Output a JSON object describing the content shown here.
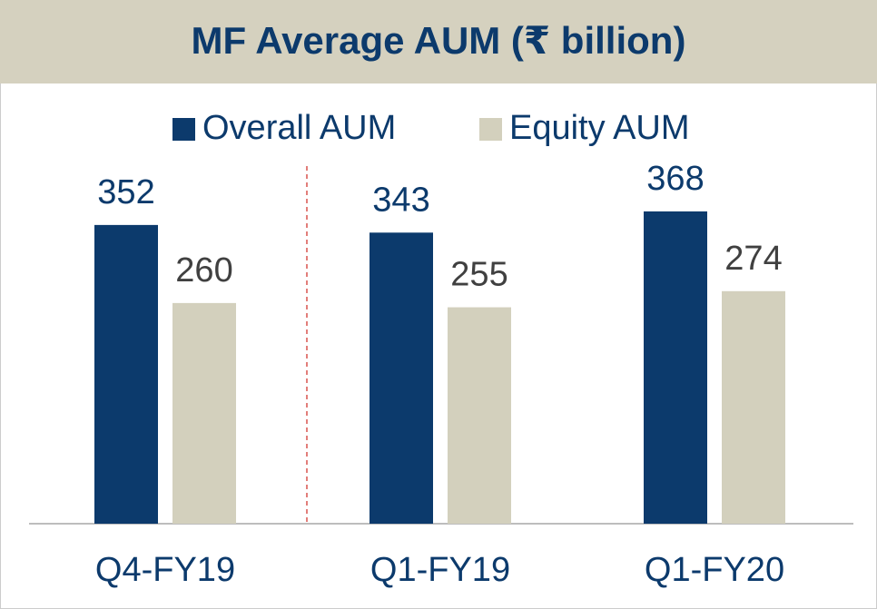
{
  "chart_data": {
    "type": "bar",
    "title": "MF Average AUM (₹ billion)",
    "categories": [
      "Q4-FY19",
      "Q1-FY19",
      "Q1-FY20"
    ],
    "series": [
      {
        "name": "Overall AUM",
        "color": "#0c3a6c",
        "values": [
          352,
          343,
          368
        ]
      },
      {
        "name": "Equity AUM",
        "color": "#d3d0bd",
        "values": [
          260,
          255,
          274
        ]
      }
    ],
    "legend": "top"
  }
}
